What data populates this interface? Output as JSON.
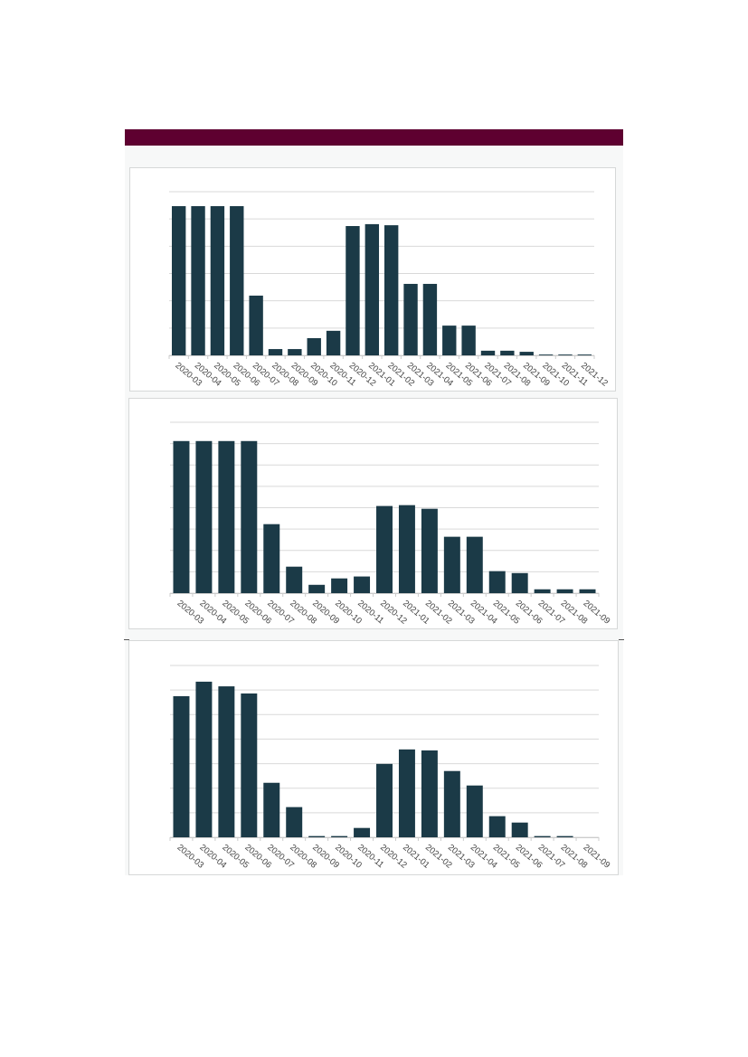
{
  "colors": {
    "header": "#5e0030",
    "bar": "#1b3a47",
    "grid": "#d9d9d9",
    "panel": "#f7f8f8"
  },
  "chart_data": [
    {
      "type": "bar",
      "title": "",
      "xlabel": "",
      "ylabel": "",
      "y_tick_labels_shown": false,
      "grid": true,
      "ylim": [
        0,
        6
      ],
      "gridlines": 6,
      "categories": [
        "2020-03",
        "2020-04",
        "2020-05",
        "2020-06",
        "2020-07",
        "2020-08",
        "2020-09",
        "2020-10",
        "2020-11",
        "2020-12",
        "2021-01",
        "2021-02",
        "2021-03",
        "2021-04",
        "2021-05",
        "2021-06",
        "2021-07",
        "2021-08",
        "2021-09",
        "2021-10",
        "2021-11",
        "2021-12"
      ],
      "values": [
        5.47,
        5.47,
        5.47,
        5.47,
        2.19,
        0.23,
        0.23,
        0.63,
        0.9,
        4.74,
        4.81,
        4.77,
        2.62,
        2.62,
        1.09,
        1.09,
        0.17,
        0.17,
        0.13,
        0.03,
        0.03,
        0.03
      ]
    },
    {
      "type": "bar",
      "title": "",
      "xlabel": "",
      "ylabel": "",
      "y_tick_labels_shown": false,
      "grid": true,
      "ylim": [
        0,
        8
      ],
      "gridlines": 8,
      "categories": [
        "2020-03",
        "2020-04",
        "2020-05",
        "2020-06",
        "2020-07",
        "2020-08",
        "2020-09",
        "2020-10",
        "2020-11",
        "2020-12",
        "2021-01",
        "2021-02",
        "2021-03",
        "2021-04",
        "2021-05",
        "2021-06",
        "2021-07",
        "2021-08",
        "2021-09"
      ],
      "values": [
        7.12,
        7.12,
        7.12,
        7.12,
        3.23,
        1.24,
        0.39,
        0.69,
        0.78,
        4.08,
        4.12,
        3.95,
        2.64,
        2.64,
        1.03,
        0.94,
        0.18,
        0.18,
        0.18
      ]
    },
    {
      "type": "bar",
      "title": "",
      "xlabel": "",
      "ylabel": "",
      "y_tick_labels_shown": false,
      "grid": true,
      "ylim": [
        0,
        7
      ],
      "gridlines": 7,
      "categories": [
        "2020-03",
        "2020-04",
        "2020-05",
        "2020-06",
        "2020-07",
        "2020-08",
        "2020-09",
        "2020-10",
        "2020-11",
        "2020-12",
        "2021-01",
        "2021-02",
        "2021-03",
        "2021-04",
        "2021-05",
        "2021-06",
        "2021-07",
        "2021-08",
        "2021-09"
      ],
      "values": [
        5.75,
        6.34,
        6.15,
        5.86,
        2.22,
        1.23,
        0.05,
        0.05,
        0.38,
        2.99,
        3.58,
        3.54,
        2.7,
        2.11,
        0.86,
        0.6,
        0.05,
        0.05,
        0
      ]
    }
  ]
}
